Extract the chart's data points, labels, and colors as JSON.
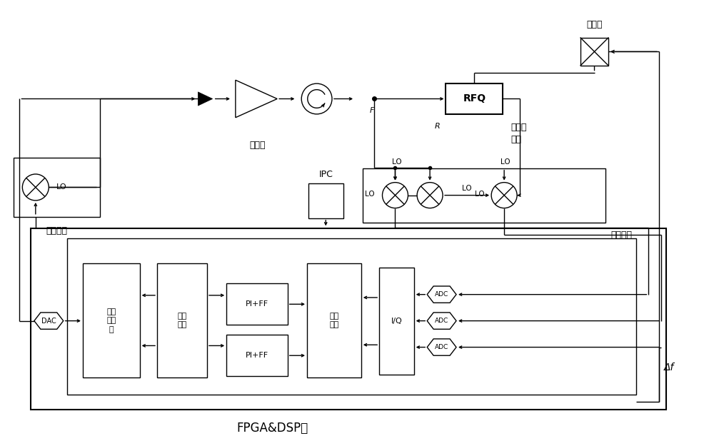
{
  "bg_color": "#ffffff",
  "line_color": "#000000",
  "fig_width": 10.0,
  "fig_height": 6.11,
  "labels": {
    "sudianguan": "速调管",
    "shangpinqi": "上变频器",
    "xiapinqi": "下变频器",
    "qiangchang": "腔场拾\n取器",
    "qiangtishui": "腔体水",
    "fpga": "FPGA&DSP板",
    "ipc": "IPC",
    "delta_f": "Δf",
    "rfq": "RFQ",
    "dac": "DAC",
    "iq": "I/Q",
    "pi_ff1": "PI+FF",
    "pi_ff2": "PI+FF",
    "juzhen1": "矩阵\n旋转",
    "juzhen2": "矩阵\n旋转",
    "shukon": "数控\n振荡\n器",
    "adc1": "ADC",
    "adc2": "ADC",
    "adc3": "ADC",
    "lo": "LO",
    "f_label": "F",
    "r_label": "R"
  }
}
